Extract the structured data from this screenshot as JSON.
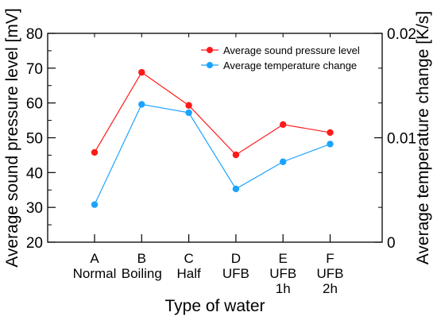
{
  "chart_data": {
    "type": "line",
    "categories": [
      [
        "A",
        "Normal"
      ],
      [
        "B",
        "Boiling"
      ],
      [
        "C",
        "Half"
      ],
      [
        "D",
        "UFB"
      ],
      [
        "E",
        "UFB",
        "1h"
      ],
      [
        "F",
        "UFB",
        "2h"
      ]
    ],
    "xlabel": "Type of water",
    "ylabel_left": "Average sound pressure level [mV]",
    "ylabel_right": "Average temperature change [K/s]",
    "ylim_left": [
      20,
      80
    ],
    "yticks_left": [
      "20",
      "30",
      "40",
      "50",
      "60",
      "70",
      "80"
    ],
    "ylim_right": [
      0,
      0.02
    ],
    "yticks_right": [
      {
        "value": 0,
        "label": "0"
      },
      {
        "value": 0.01,
        "label": "0.01"
      },
      {
        "value": 0.02,
        "label": "0.02"
      }
    ],
    "grid": false,
    "legend_position": "top-right",
    "series": [
      {
        "name": "Average sound pressure level",
        "axis": "left",
        "color": "#ff1a1a",
        "values": [
          45.8,
          68.8,
          59.3,
          45.1,
          53.8,
          51.5
        ]
      },
      {
        "name": "Average temperature change",
        "axis": "right",
        "color": "#1aa3ff",
        "values": [
          0.0036,
          0.0132,
          0.0124,
          0.0051,
          0.0077,
          0.0094
        ]
      }
    ]
  }
}
